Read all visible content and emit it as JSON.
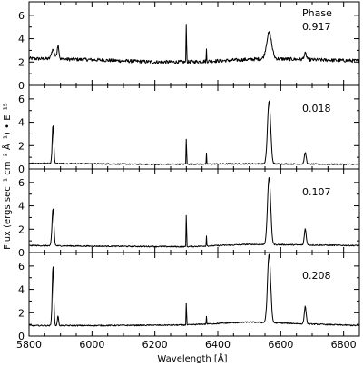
{
  "chart_data": {
    "type": "line",
    "xlabel": "Wavelength [Å]",
    "ylabel": "Flux (ergs sec⁻¹ cm⁻² Å⁻¹) • E⁻¹⁵",
    "xlim": [
      5800,
      6850
    ],
    "ylim": [
      0,
      7
    ],
    "x_ticks": [
      5800,
      6000,
      6200,
      6400,
      6600,
      6800
    ],
    "y_ticks": [
      0,
      2,
      4,
      6
    ],
    "grid": false,
    "panels": [
      {
        "label_title": "Phase",
        "label": "0.917",
        "continuum": [
          [
            5800,
            2.3
          ],
          [
            6000,
            2.2
          ],
          [
            6200,
            2.0
          ],
          [
            6300,
            2.0
          ],
          [
            6400,
            2.1
          ],
          [
            6560,
            2.3
          ],
          [
            6700,
            2.2
          ],
          [
            6850,
            2.1
          ]
        ],
        "lines": [
          {
            "center": 5876,
            "height": 0.8,
            "width": 5
          },
          {
            "center": 5892,
            "height": 1.2,
            "width": 3
          },
          {
            "center": 6300,
            "height": 4.2,
            "width": 0.7
          },
          {
            "center": 6364,
            "height": 1.0,
            "width": 0.7
          },
          {
            "center": 6563,
            "height": 2.2,
            "width": 8
          },
          {
            "center": 6678,
            "height": 0.5,
            "width": 4
          }
        ],
        "noise": 0.15
      },
      {
        "label": "0.018",
        "continuum": [
          [
            5800,
            0.5
          ],
          [
            6200,
            0.4
          ],
          [
            6500,
            0.45
          ],
          [
            6850,
            0.4
          ]
        ],
        "lines": [
          {
            "center": 5876,
            "height": 3.3,
            "width": 2.5
          },
          {
            "center": 6300,
            "height": 2.8,
            "width": 0.7
          },
          {
            "center": 6364,
            "height": 0.9,
            "width": 0.7
          },
          {
            "center": 6563,
            "height": 5.4,
            "width": 5
          },
          {
            "center": 6678,
            "height": 1.0,
            "width": 3
          }
        ],
        "noise": 0.05
      },
      {
        "label": "0.107",
        "continuum": [
          [
            5800,
            0.6
          ],
          [
            6000,
            0.55
          ],
          [
            6300,
            0.5
          ],
          [
            6500,
            0.7
          ],
          [
            6850,
            0.6
          ]
        ],
        "lines": [
          {
            "center": 5876,
            "height": 3.2,
            "width": 3
          },
          {
            "center": 6300,
            "height": 3.5,
            "width": 0.7
          },
          {
            "center": 6364,
            "height": 0.9,
            "width": 0.7
          },
          {
            "center": 6563,
            "height": 5.8,
            "width": 5
          },
          {
            "center": 6678,
            "height": 1.4,
            "width": 3
          }
        ],
        "noise": 0.05
      },
      {
        "label": "0.208",
        "continuum": [
          [
            5800,
            0.9
          ],
          [
            6000,
            0.9
          ],
          [
            6300,
            0.95
          ],
          [
            6500,
            1.2
          ],
          [
            6850,
            0.9
          ]
        ],
        "lines": [
          {
            "center": 5876,
            "height": 5.1,
            "width": 2.5
          },
          {
            "center": 5892,
            "height": 0.8,
            "width": 2
          },
          {
            "center": 6300,
            "height": 2.4,
            "width": 0.7
          },
          {
            "center": 6364,
            "height": 0.7,
            "width": 0.7
          },
          {
            "center": 6563,
            "height": 5.9,
            "width": 5
          },
          {
            "center": 6678,
            "height": 1.5,
            "width": 3
          }
        ],
        "noise": 0.05
      }
    ]
  }
}
